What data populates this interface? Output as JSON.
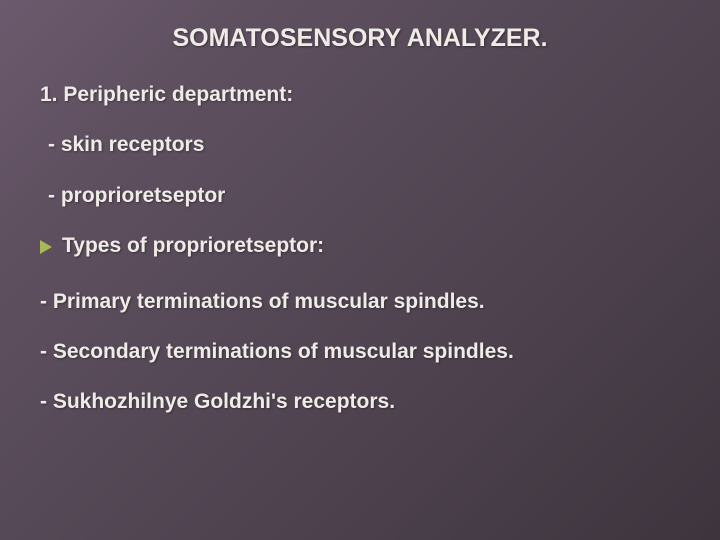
{
  "slide": {
    "title": "SOMATOSENSORY ANALYZER.",
    "heading1": "1. Peripheric department:",
    "item1": "- skin receptors",
    "item2": "- proprioretseptor",
    "bulletLabel": "Types of proprioretseptor:",
    "body1": "- Primary terminations of muscular spindles.",
    "body2": "- Secondary terminations of muscular spindles.",
    "body3": "- Sukhozhilnye Goldzhi's receptors."
  },
  "style": {
    "background_gradient": [
      "#6b5a6d",
      "#5f5060",
      "#574a58",
      "#4f4350",
      "#463c47",
      "#3d343e"
    ],
    "text_color": "#efece8",
    "arrow_color": "#a7b85a",
    "title_fontsize": 25,
    "body_fontsize": 21,
    "font_family": "Verdana",
    "font_weight": "bold"
  }
}
